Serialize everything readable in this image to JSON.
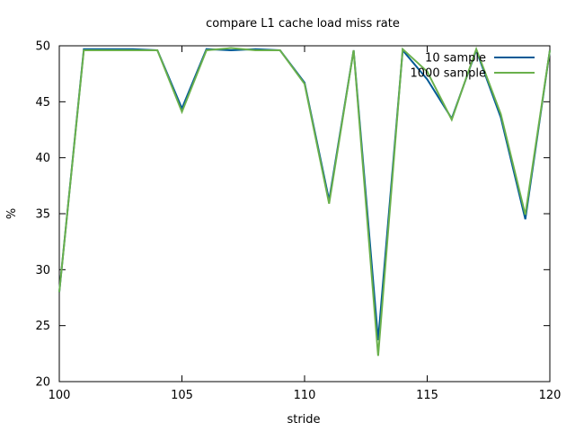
{
  "chart_data": {
    "type": "line",
    "title": "compare L1 cache load miss rate",
    "xlabel": "stride",
    "ylabel": "%",
    "xlim": [
      100,
      120
    ],
    "ylim": [
      20,
      50
    ],
    "xticks": [
      100,
      105,
      110,
      115,
      120
    ],
    "yticks": [
      20,
      25,
      30,
      35,
      40,
      45,
      50
    ],
    "grid": false,
    "legend_position": "top-right",
    "x": [
      100,
      101,
      102,
      103,
      104,
      105,
      106,
      107,
      108,
      109,
      110,
      111,
      112,
      113,
      114,
      115,
      116,
      117,
      118,
      119,
      120
    ],
    "series": [
      {
        "name": "10 sample",
        "color": "#005a96",
        "values": [
          28.0,
          49.7,
          49.7,
          49.7,
          49.6,
          44.4,
          49.7,
          49.6,
          49.7,
          49.6,
          46.7,
          36.2,
          49.6,
          23.7,
          49.6,
          47.0,
          43.5,
          49.6,
          43.6,
          34.5,
          49.6
        ]
      },
      {
        "name": "1000 sample",
        "color": "#6ab04c",
        "values": [
          28.0,
          49.6,
          49.6,
          49.6,
          49.6,
          44.1,
          49.6,
          49.8,
          49.6,
          49.6,
          46.6,
          35.9,
          49.6,
          22.3,
          49.7,
          47.7,
          43.4,
          49.7,
          43.9,
          34.9,
          49.6
        ]
      }
    ]
  }
}
